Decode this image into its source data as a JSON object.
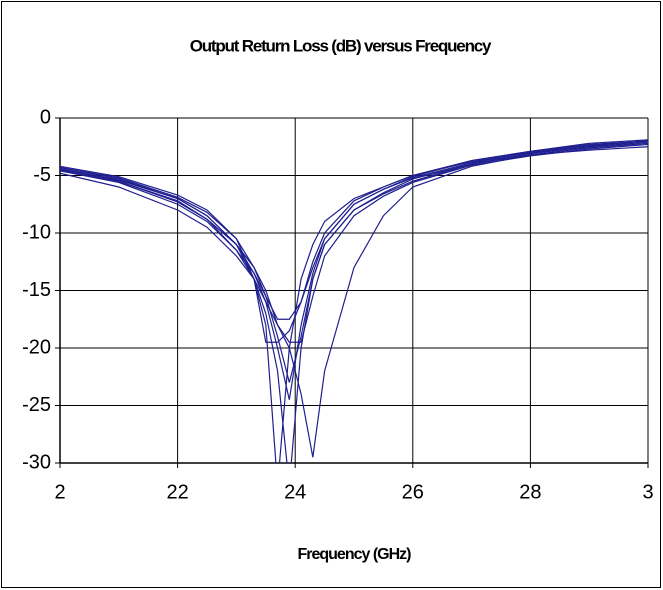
{
  "chart_data": {
    "type": "line",
    "title": "Output Return Loss (dB) versus Frequency",
    "x_label": "Frequency (GHz)",
    "x": [
      20,
      21,
      22,
      22.5,
      23,
      23.3,
      23.5,
      23.7,
      23.9,
      24.1,
      24.3,
      24.5,
      25,
      25.5,
      26,
      27,
      28,
      29,
      30
    ],
    "series": [
      {
        "color": "#1f1f8f",
        "values": [
          -4.3,
          -5.3,
          -7,
          -8.5,
          -11,
          -14,
          -18,
          -32,
          -20,
          -14,
          -11,
          -9,
          -7,
          -6,
          -5,
          -3.8,
          -3,
          -2.4,
          -2
        ]
      },
      {
        "color": "#1f1f8f",
        "values": [
          -4.8,
          -6,
          -8,
          -9.5,
          -12,
          -14,
          -16,
          -18,
          -20,
          -24,
          -29.5,
          -22,
          -13,
          -8.5,
          -6,
          -4.2,
          -3.2,
          -2.8,
          -2.5
        ]
      },
      {
        "color": "#1f1f8f",
        "values": [
          -4.5,
          -5.5,
          -7.2,
          -8.8,
          -11.5,
          -14,
          -17,
          -22,
          -32,
          -20,
          -14,
          -11,
          -8,
          -6.5,
          -5.3,
          -4,
          -3.2,
          -2.6,
          -2.2
        ]
      },
      {
        "color": "#1f1f8f",
        "values": [
          -4.4,
          -5.4,
          -7,
          -8.5,
          -11,
          -13.5,
          -16,
          -20,
          -24.5,
          -18,
          -13.5,
          -10.5,
          -7.5,
          -6.2,
          -5.2,
          -3.9,
          -3,
          -2.4,
          -2
        ]
      },
      {
        "color": "#1f1f8f",
        "values": [
          -4.6,
          -5.6,
          -7.5,
          -9,
          -11.5,
          -13.5,
          -15.5,
          -19,
          -23,
          -19,
          -14,
          -11,
          -8,
          -6.6,
          -5.5,
          -4,
          -3.1,
          -2.5,
          -2.1
        ]
      },
      {
        "color": "#1f1f8f",
        "values": [
          -4.2,
          -5.1,
          -6.7,
          -8,
          -10.5,
          -14,
          -19.5,
          -19.5,
          -18.5,
          -16,
          -12.5,
          -10,
          -7.2,
          -6,
          -5,
          -3.7,
          -2.9,
          -2.2,
          -1.9
        ]
      },
      {
        "color": "#1f1f8f",
        "values": [
          -4.3,
          -5.2,
          -6.9,
          -8.2,
          -10.5,
          -13,
          -15.5,
          -17.5,
          -17.5,
          -16,
          -13,
          -10.5,
          -7.5,
          -6.2,
          -5.1,
          -3.7,
          -2.9,
          -2.3,
          -2
        ]
      },
      {
        "color": "#1f1f8f",
        "values": [
          -4.5,
          -5.5,
          -7.3,
          -8.8,
          -11,
          -13,
          -15,
          -18,
          -19.5,
          -19.5,
          -15.5,
          -12,
          -8.5,
          -6.8,
          -5.6,
          -4.1,
          -3.3,
          -2.7,
          -2.3
        ]
      }
    ],
    "xlim": [
      20,
      30
    ],
    "xticks": [
      {
        "value": 20,
        "label": "2"
      },
      22,
      24,
      26,
      28,
      {
        "value": 30,
        "label": "3"
      }
    ],
    "ylim": [
      -30,
      0
    ],
    "yticks": [
      0,
      -5,
      -10,
      -15,
      -20,
      -25,
      -30
    ],
    "grid": true
  }
}
